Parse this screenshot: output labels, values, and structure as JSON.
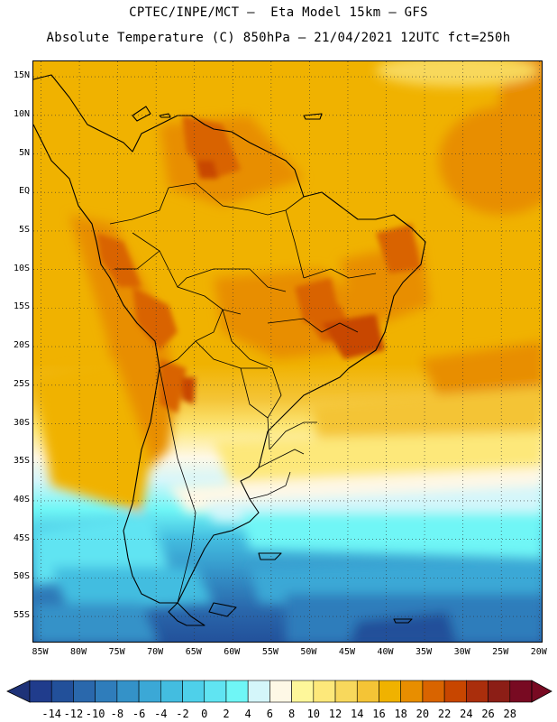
{
  "header": {
    "line1": "CPTEC/INPE/MCT –  Eta Model 15km – GFS",
    "line2": "Absolute Temperature (C) 850hPa – 21/04/2021 12UTC fct=250h"
  },
  "map": {
    "latitude_labels": [
      "15N",
      "10N",
      "5N",
      "EQ",
      "5S",
      "10S",
      "15S",
      "20S",
      "25S",
      "30S",
      "35S",
      "40S",
      "45S",
      "50S",
      "55S"
    ],
    "longitude_labels": [
      "85W",
      "80W",
      "75W",
      "70W",
      "65W",
      "60W",
      "55W",
      "50W",
      "45W",
      "40W",
      "35W",
      "30W",
      "25W",
      "20W"
    ],
    "lat_range": [
      -58.5,
      17.0
    ],
    "lon_range": [
      -86.0,
      -19.5
    ],
    "gridlines": "dotted"
  },
  "colorbar": {
    "labels": [
      "-14",
      "-12",
      "-10",
      "-8",
      "-6",
      "-4",
      "-2",
      "0",
      "2",
      "4",
      "6",
      "8",
      "10",
      "12",
      "14",
      "16",
      "18",
      "20",
      "22",
      "24",
      "26",
      "28"
    ],
    "values": [
      -14,
      -12,
      -10,
      -8,
      -6,
      -4,
      -2,
      0,
      2,
      4,
      6,
      8,
      10,
      12,
      14,
      16,
      18,
      20,
      22,
      24,
      26,
      28
    ],
    "colors": [
      "#203c8c",
      "#22509a",
      "#2a68ac",
      "#2f7dbb",
      "#3492c8",
      "#3ba8d6",
      "#43bde0",
      "#4ed0ea",
      "#60e4f2",
      "#6ff6f6",
      "#d4f6fa",
      "#fef8e6",
      "#fef79a",
      "#fde87a",
      "#f8d85c",
      "#f4c436",
      "#f0b200",
      "#e88e00",
      "#d96400",
      "#c84600",
      "#aa2e0c",
      "#8c1e16",
      "#780a22"
    ],
    "under_color": "#1e3278",
    "over_color": "#780a22"
  }
}
